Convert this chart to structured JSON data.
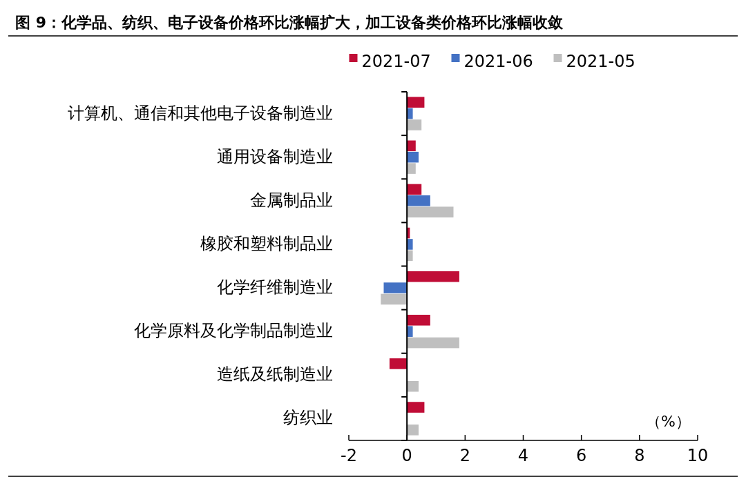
{
  "chart_data": {
    "type": "bar",
    "orientation": "horizontal",
    "title": "图 9：化学品、纺织、电子设备价格环比涨幅扩大，加工设备类价格环比涨幅收敛",
    "xlabel": "（%）",
    "categories": [
      "计算机、通信和其他电子设备制造业",
      "通用设备制造业",
      "金属制品业",
      "橡胶和塑料制品业",
      "化学纤维制造业",
      "化学原料及化学制品制造业",
      "造纸及纸制造业",
      "纺织业"
    ],
    "series": [
      {
        "name": "2021-07",
        "color": "#c00d36",
        "values": [
          0.6,
          0.3,
          0.5,
          0.1,
          1.8,
          0.8,
          -0.6,
          0.6
        ]
      },
      {
        "name": "2021-06",
        "color": "#4472c4",
        "values": [
          0.2,
          0.4,
          0.8,
          0.2,
          -0.8,
          0.2,
          0,
          0
        ]
      },
      {
        "name": "2021-05",
        "color": "#bfbfbf",
        "values": [
          0.5,
          0.3,
          1.6,
          0.2,
          -0.9,
          1.8,
          0.4,
          0.4
        ]
      }
    ],
    "xlim": [
      -2,
      10
    ],
    "xticks": [
      -2,
      0,
      2,
      4,
      6,
      8,
      10
    ],
    "legend": "top"
  }
}
